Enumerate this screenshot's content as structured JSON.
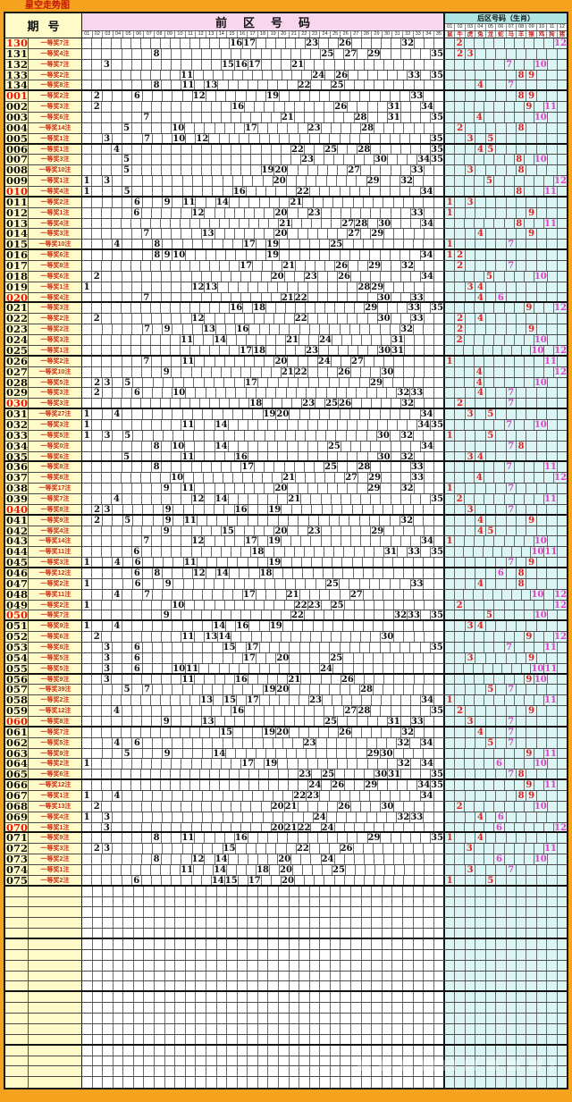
{
  "title": "星空走势图",
  "header": {
    "period_label": "期号",
    "front_title": "前区号码",
    "back_title": "后区号码（生肖）",
    "front_cols": [
      "01",
      "02",
      "03",
      "04",
      "05",
      "06",
      "07",
      "08",
      "09",
      "10",
      "11",
      "12",
      "13",
      "14",
      "15",
      "16",
      "17",
      "18",
      "19",
      "20",
      "21",
      "22",
      "23",
      "24",
      "25",
      "26",
      "27",
      "28",
      "29",
      "30",
      "31",
      "32",
      "33",
      "34",
      "35"
    ],
    "back_cols": [
      "01",
      "02",
      "03",
      "04",
      "05",
      "06",
      "07",
      "08",
      "09",
      "10",
      "11",
      "12"
    ],
    "zodiac": [
      "鼠",
      "牛",
      "虎",
      "兔",
      "龙",
      "蛇",
      "马",
      "羊",
      "猴",
      "鸡",
      "狗",
      "猪"
    ]
  },
  "style": {
    "orange_bg": "#f5a21e",
    "yellow_col": "#fffbc8",
    "pink_header": "#f8d7ee",
    "cyan_header": "#aee5e2",
    "cyan_cells": "#daf5f3",
    "period_red": "#e8190c",
    "label_red": "#d42a10",
    "back_red": "#e02020",
    "back_magenta": "#e040c8",
    "back_magenta_columns": [
      6,
      7,
      10,
      11,
      12
    ]
  },
  "layout": {
    "empty_rows": 19
  },
  "chart_data": {
    "type": "table",
    "title": "星空走势图",
    "description": "大乐透 前区号码01-35 / 后区号码01-12 走势图",
    "rows": [
      {
        "p": "130",
        "r": 1,
        "z": "一等奖7注",
        "f": [
          16,
          17,
          23,
          26,
          32
        ],
        "b": [
          2,
          12
        ]
      },
      {
        "p": "131",
        "r": 0,
        "z": "一等奖4注",
        "f": [
          8,
          25,
          27,
          29,
          35
        ],
        "b": [
          2,
          3
        ]
      },
      {
        "p": "132",
        "r": 0,
        "z": "一等奖7注",
        "f": [
          3,
          15,
          16,
          17,
          21
        ],
        "b": [
          7,
          10
        ]
      },
      {
        "p": "133",
        "r": 0,
        "z": "一等奖2注",
        "f": [
          11,
          24,
          26,
          33,
          35
        ],
        "b": [
          8,
          9
        ]
      },
      {
        "p": "134",
        "r": 0,
        "z": "一等奖8注",
        "f": [
          8,
          11,
          13,
          22,
          25
        ],
        "b": [
          4,
          7
        ]
      },
      {
        "p": "001",
        "r": 1,
        "z": "一等奖2注",
        "f": [
          2,
          6,
          12,
          19,
          33
        ],
        "b": [
          8,
          9
        ]
      },
      {
        "p": "002",
        "r": 0,
        "z": "一等奖3注",
        "f": [
          2,
          16,
          26,
          31,
          34
        ],
        "b": [
          9,
          11
        ]
      },
      {
        "p": "003",
        "r": 0,
        "z": "一等奖6注",
        "f": [
          7,
          21,
          28,
          31,
          35
        ],
        "b": [
          4,
          10
        ]
      },
      {
        "p": "004",
        "r": 0,
        "z": "一等奖14注",
        "f": [
          5,
          10,
          17,
          23,
          28
        ],
        "b": [
          2,
          8
        ]
      },
      {
        "p": "005",
        "r": 0,
        "z": "一等奖1注",
        "f": [
          3,
          7,
          10,
          12,
          35
        ],
        "b": [
          3,
          5
        ]
      },
      {
        "p": "006",
        "r": 0,
        "z": "一等奖1注",
        "f": [
          4,
          22,
          25,
          28,
          35
        ],
        "b": [
          4,
          5
        ]
      },
      {
        "p": "007",
        "r": 0,
        "z": "一等奖3注",
        "f": [
          5,
          23,
          30,
          34,
          35
        ],
        "b": [
          8,
          10
        ]
      },
      {
        "p": "008",
        "r": 0,
        "z": "一等奖10注",
        "f": [
          5,
          19,
          20,
          27,
          33
        ],
        "b": [
          3,
          8
        ]
      },
      {
        "p": "009",
        "r": 0,
        "z": "一等奖1注",
        "f": [
          1,
          3,
          20,
          29,
          32
        ],
        "b": [
          5,
          12
        ]
      },
      {
        "p": "010",
        "r": 1,
        "z": "一等奖4注",
        "f": [
          1,
          5,
          16,
          22,
          34
        ],
        "b": [
          8,
          11
        ]
      },
      {
        "p": "011",
        "r": 0,
        "z": "一等奖2注",
        "f": [
          6,
          9,
          11,
          14,
          21
        ],
        "b": [
          1,
          3
        ]
      },
      {
        "p": "012",
        "r": 0,
        "z": "一等奖1注",
        "f": [
          6,
          12,
          20,
          23,
          33
        ],
        "b": [
          1,
          9
        ]
      },
      {
        "p": "013",
        "r": 0,
        "z": "一等奖4注",
        "f": [
          21,
          27,
          28,
          30,
          34
        ],
        "b": [
          8,
          11
        ]
      },
      {
        "p": "014",
        "r": 0,
        "z": "一等奖3注",
        "f": [
          7,
          13,
          20,
          27,
          29
        ],
        "b": [
          4,
          9
        ]
      },
      {
        "p": "015",
        "r": 0,
        "z": "一等奖10注",
        "f": [
          4,
          8,
          17,
          19,
          25
        ],
        "b": [
          1,
          7
        ]
      },
      {
        "p": "016",
        "r": 0,
        "z": "一等奖6注",
        "f": [
          8,
          9,
          10,
          19,
          34
        ],
        "b": [
          1,
          2
        ]
      },
      {
        "p": "017",
        "r": 0,
        "z": "一等奖8注",
        "f": [
          17,
          21,
          26,
          29,
          32
        ],
        "b": [
          2,
          7
        ]
      },
      {
        "p": "018",
        "r": 0,
        "z": "一等奖6注",
        "f": [
          2,
          20,
          23,
          26,
          34
        ],
        "b": [
          5,
          10
        ]
      },
      {
        "p": "019",
        "r": 0,
        "z": "一等奖1注",
        "f": [
          1,
          12,
          13,
          28,
          29
        ],
        "b": [
          3,
          4
        ]
      },
      {
        "p": "020",
        "r": 1,
        "z": "一等奖4注",
        "f": [
          7,
          21,
          22,
          30,
          33
        ],
        "b": [
          4,
          6
        ]
      },
      {
        "p": "021",
        "r": 0,
        "z": "一等奖3注",
        "f": [
          16,
          18,
          29,
          33,
          35
        ],
        "b": [
          9,
          12
        ]
      },
      {
        "p": "022",
        "r": 0,
        "z": "一等奖2注",
        "f": [
          2,
          12,
          22,
          30,
          33
        ],
        "b": [
          2,
          4
        ]
      },
      {
        "p": "023",
        "r": 0,
        "z": "一等奖2注",
        "f": [
          7,
          9,
          13,
          16,
          32
        ],
        "b": [
          2,
          9
        ]
      },
      {
        "p": "024",
        "r": 0,
        "z": "一等奖3注",
        "f": [
          11,
          14,
          21,
          24,
          31
        ],
        "b": [
          2,
          10
        ]
      },
      {
        "p": "025",
        "r": 0,
        "z": "一等奖1注",
        "f": [
          17,
          18,
          23,
          30,
          31
        ],
        "b": [
          10,
          12
        ]
      },
      {
        "p": "026",
        "r": 0,
        "z": "一等奖2注",
        "f": [
          7,
          11,
          20,
          24,
          27
        ],
        "b": [
          1,
          11
        ]
      },
      {
        "p": "027",
        "r": 0,
        "z": "一等奖10注",
        "f": [
          9,
          21,
          22,
          26,
          30
        ],
        "b": [
          4,
          12
        ]
      },
      {
        "p": "028",
        "r": 0,
        "z": "一等奖5注",
        "f": [
          2,
          3,
          5,
          17,
          29
        ],
        "b": [
          4,
          10
        ]
      },
      {
        "p": "029",
        "r": 0,
        "z": "一等奖3注",
        "f": [
          2,
          6,
          10,
          32,
          33
        ],
        "b": [
          4,
          7
        ]
      },
      {
        "p": "030",
        "r": 1,
        "z": "一等奖3注",
        "f": [
          18,
          23,
          25,
          26,
          32
        ],
        "b": [
          2,
          7
        ]
      },
      {
        "p": "031",
        "r": 0,
        "z": "一等奖27注",
        "f": [
          1,
          4,
          19,
          20,
          34
        ],
        "b": [
          3,
          5
        ]
      },
      {
        "p": "032",
        "r": 0,
        "z": "一等奖3注",
        "f": [
          1,
          11,
          14,
          34,
          35
        ],
        "b": [
          7,
          10
        ]
      },
      {
        "p": "033",
        "r": 0,
        "z": "一等奖5注",
        "f": [
          1,
          3,
          5,
          30,
          32
        ],
        "b": [
          1,
          5
        ]
      },
      {
        "p": "034",
        "r": 0,
        "z": "一等奖0注",
        "f": [
          8,
          10,
          14,
          25,
          34
        ],
        "b": [
          7,
          8
        ]
      },
      {
        "p": "035",
        "r": 0,
        "z": "一等奖6注",
        "f": [
          5,
          11,
          16,
          30,
          32
        ],
        "b": [
          3,
          4
        ]
      },
      {
        "p": "036",
        "r": 0,
        "z": "一等奖8注",
        "f": [
          8,
          17,
          25,
          28,
          33
        ],
        "b": [
          7,
          11
        ]
      },
      {
        "p": "037",
        "r": 0,
        "z": "一等奖8注",
        "f": [
          10,
          21,
          27,
          29,
          33
        ],
        "b": [
          4,
          12
        ]
      },
      {
        "p": "038",
        "r": 0,
        "z": "一等奖17注",
        "f": [
          9,
          11,
          20,
          29,
          32
        ],
        "b": [
          1,
          7
        ]
      },
      {
        "p": "039",
        "r": 0,
        "z": "一等奖7注",
        "f": [
          4,
          12,
          14,
          21,
          35
        ],
        "b": [
          2,
          11
        ]
      },
      {
        "p": "040",
        "r": 1,
        "z": "一等奖8注",
        "f": [
          2,
          3,
          9,
          16,
          19
        ],
        "b": [
          3,
          7
        ]
      },
      {
        "p": "041",
        "r": 0,
        "z": "一等奖9注",
        "f": [
          2,
          5,
          9,
          11,
          32
        ],
        "b": [
          4,
          9
        ]
      },
      {
        "p": "042",
        "r": 0,
        "z": "一等奖4注",
        "f": [
          9,
          15,
          20,
          23,
          29
        ],
        "b": [
          4,
          5
        ]
      },
      {
        "p": "043",
        "r": 0,
        "z": "一等奖14注",
        "f": [
          7,
          12,
          17,
          19,
          34
        ],
        "b": [
          1,
          10
        ]
      },
      {
        "p": "044",
        "r": 0,
        "z": "一等奖11注",
        "f": [
          6,
          18,
          31,
          33,
          35
        ],
        "b": [
          10,
          11
        ]
      },
      {
        "p": "045",
        "r": 0,
        "z": "一等奖3注",
        "f": [
          1,
          4,
          6,
          11,
          19
        ],
        "b": [
          7,
          9
        ]
      },
      {
        "p": "046",
        "r": 0,
        "z": "一等奖12注",
        "f": [
          6,
          8,
          12,
          14,
          18
        ],
        "b": [
          6,
          8
        ]
      },
      {
        "p": "047",
        "r": 0,
        "z": "一等奖2注",
        "f": [
          1,
          6,
          9,
          25,
          33
        ],
        "b": [
          4,
          8
        ]
      },
      {
        "p": "048",
        "r": 0,
        "z": "一等奖11注",
        "f": [
          4,
          7,
          17,
          21,
          27
        ],
        "b": [
          10,
          12
        ]
      },
      {
        "p": "049",
        "r": 0,
        "z": "一等奖2注",
        "f": [
          1,
          10,
          22,
          23,
          25
        ],
        "b": [
          2,
          12
        ]
      },
      {
        "p": "050",
        "r": 1,
        "z": "一等奖7注",
        "f": [
          9,
          22,
          32,
          33,
          35
        ],
        "b": [
          5,
          10
        ]
      },
      {
        "p": "051",
        "r": 0,
        "z": "一等奖9注",
        "f": [
          1,
          4,
          14,
          16,
          19
        ],
        "b": [
          3,
          4
        ]
      },
      {
        "p": "052",
        "r": 0,
        "z": "一等奖6注",
        "f": [
          2,
          11,
          13,
          14,
          30
        ],
        "b": [
          9,
          12
        ]
      },
      {
        "p": "053",
        "r": 0,
        "z": "一等奖8注",
        "f": [
          3,
          6,
          15,
          17,
          35
        ],
        "b": [
          7,
          11
        ]
      },
      {
        "p": "054",
        "r": 0,
        "z": "一等奖5注",
        "f": [
          3,
          6,
          17,
          20,
          25
        ],
        "b": [
          3,
          9
        ]
      },
      {
        "p": "055",
        "r": 0,
        "z": "一等奖5注",
        "f": [
          3,
          6,
          10,
          11,
          24
        ],
        "b": [
          10,
          11
        ]
      },
      {
        "p": "056",
        "r": 0,
        "z": "一等奖9注",
        "f": [
          3,
          11,
          16,
          21,
          26
        ],
        "b": [
          9,
          10
        ]
      },
      {
        "p": "057",
        "r": 0,
        "z": "一等奖39注",
        "f": [
          5,
          7,
          19,
          20,
          28
        ],
        "b": [
          5,
          7
        ]
      },
      {
        "p": "058",
        "r": 0,
        "z": "一等奖2注",
        "f": [
          13,
          15,
          17,
          23,
          34
        ],
        "b": [
          1,
          11
        ]
      },
      {
        "p": "059",
        "r": 0,
        "z": "一等奖12注",
        "f": [
          4,
          16,
          27,
          28,
          35
        ],
        "b": [
          2,
          9
        ]
      },
      {
        "p": "060",
        "r": 1,
        "z": "一等奖8注",
        "f": [
          9,
          13,
          25,
          31,
          33
        ],
        "b": [
          3,
          7
        ]
      },
      {
        "p": "061",
        "r": 0,
        "z": "一等奖7注",
        "f": [
          15,
          19,
          20,
          26,
          32
        ],
        "b": [
          4,
          7
        ]
      },
      {
        "p": "062",
        "r": 0,
        "z": "一等奖5注",
        "f": [
          4,
          6,
          23,
          32,
          34
        ],
        "b": [
          5,
          7
        ]
      },
      {
        "p": "063",
        "r": 0,
        "z": "一等奖9注",
        "f": [
          5,
          9,
          14,
          29,
          30
        ],
        "b": [
          9,
          11
        ]
      },
      {
        "p": "064",
        "r": 0,
        "z": "一等奖2注",
        "f": [
          1,
          17,
          19,
          32,
          34
        ],
        "b": [
          6,
          10
        ]
      },
      {
        "p": "065",
        "r": 0,
        "z": "一等奖6注",
        "f": [
          23,
          25,
          30,
          31,
          35
        ],
        "b": [
          7,
          8
        ]
      },
      {
        "p": "066",
        "r": 0,
        "z": "一等奖12注",
        "f": [
          24,
          26,
          29,
          34,
          35
        ],
        "b": [
          9,
          11
        ]
      },
      {
        "p": "067",
        "r": 0,
        "z": "一等奖1注",
        "f": [
          1,
          4,
          22,
          23,
          34
        ],
        "b": [
          8,
          9
        ]
      },
      {
        "p": "068",
        "r": 0,
        "z": "一等奖13注",
        "f": [
          2,
          20,
          21,
          26,
          30
        ],
        "b": [
          2,
          10
        ]
      },
      {
        "p": "069",
        "r": 0,
        "z": "一等奖4注",
        "f": [
          1,
          3,
          24,
          32,
          33
        ],
        "b": [
          4,
          6
        ]
      },
      {
        "p": "070",
        "r": 1,
        "z": "一等奖1注",
        "f": [
          3,
          20,
          21,
          22,
          24
        ],
        "b": [
          6,
          12
        ]
      },
      {
        "p": "071",
        "r": 0,
        "z": "一等奖9注",
        "f": [
          8,
          11,
          16,
          29,
          35
        ],
        "b": [
          1,
          4
        ]
      },
      {
        "p": "072",
        "r": 0,
        "z": "一等奖3注",
        "f": [
          2,
          3,
          15,
          22,
          26
        ],
        "b": [
          3,
          11
        ]
      },
      {
        "p": "073",
        "r": 0,
        "z": "一等奖2注",
        "f": [
          8,
          12,
          14,
          20,
          24
        ],
        "b": [
          6,
          10
        ]
      },
      {
        "p": "074",
        "r": 0,
        "z": "一等奖1注",
        "f": [
          11,
          14,
          18,
          20,
          25
        ],
        "b": [
          3,
          7
        ]
      },
      {
        "p": "075",
        "r": 0,
        "z": "一等奖2注",
        "f": [
          6,
          14,
          15,
          17,
          20
        ],
        "b": [
          1,
          5
        ]
      }
    ]
  }
}
